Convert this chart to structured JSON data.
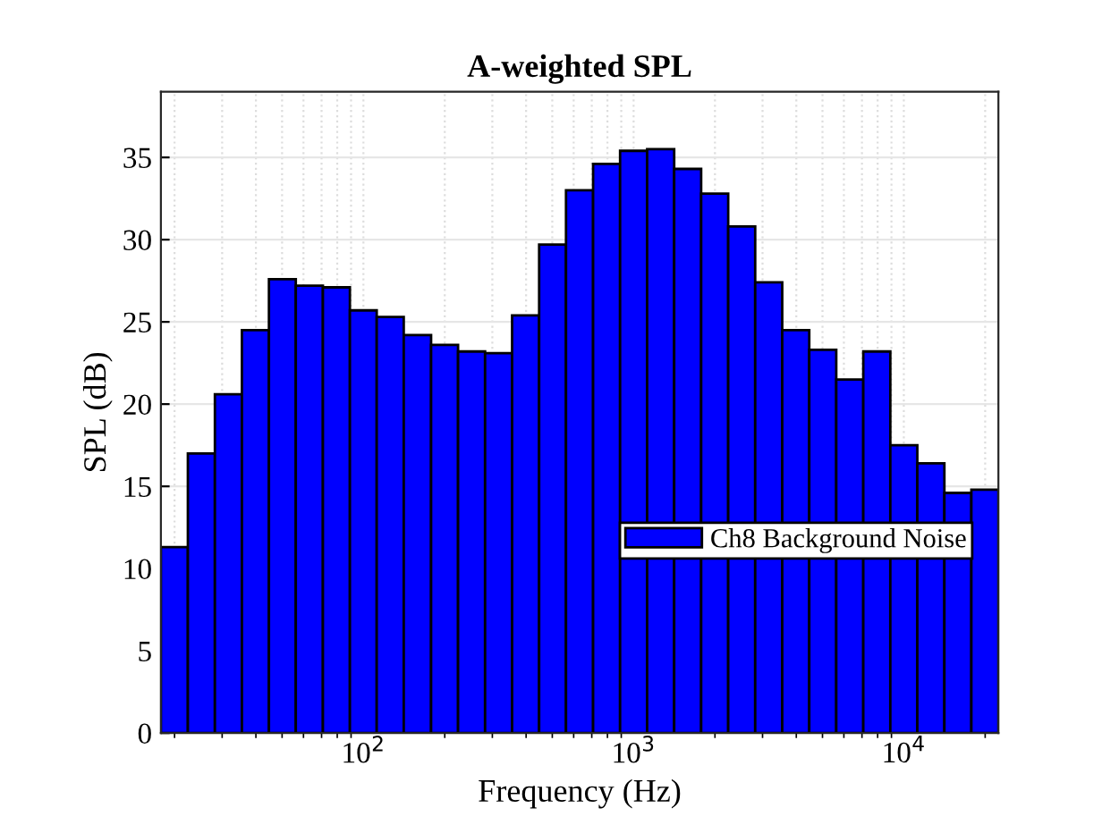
{
  "chart_data": {
    "type": "histogram",
    "title": "A-weighted SPL",
    "xlabel": "Frequency (Hz)",
    "ylabel": "SPL (dB)",
    "bins": [
      17.8,
      22.4,
      28.2,
      35.5,
      44.7,
      56.2,
      70.8,
      89.1,
      112,
      141,
      178,
      224,
      282,
      355,
      447,
      562,
      708,
      891,
      1122,
      1413,
      1778,
      2239,
      2818,
      3548,
      4467,
      5623,
      7079,
      8913,
      11220,
      14130,
      17780,
      22390
    ],
    "series": [
      {
        "name": "Ch8 Background Noise",
        "color": "#0000ff",
        "values": [
          11.3,
          17,
          20.6,
          24.5,
          27.6,
          27.2,
          27.1,
          25.7,
          25.3,
          24.2,
          23.6,
          23.2,
          23.1,
          25.4,
          29.7,
          33,
          34.6,
          35.4,
          35.5,
          34.3,
          32.8,
          30.8,
          27.4,
          24.5,
          23.3,
          21.5,
          23.2,
          17.5,
          16.4,
          14.6,
          14.8
        ]
      }
    ],
    "log": "x",
    "xlim": [
      17.8,
      22390
    ],
    "xticks": [
      {
        "value": 100,
        "label": "10$^{2}$"
      },
      {
        "value": 1000,
        "label": "10$^{3}$"
      },
      {
        "value": 10000,
        "label": "10$^{4}$"
      }
    ],
    "ylim": [
      0,
      39
    ],
    "yticks": [
      0,
      5,
      10,
      15,
      20,
      25,
      30,
      35
    ],
    "grid": true,
    "legend": "right"
  }
}
